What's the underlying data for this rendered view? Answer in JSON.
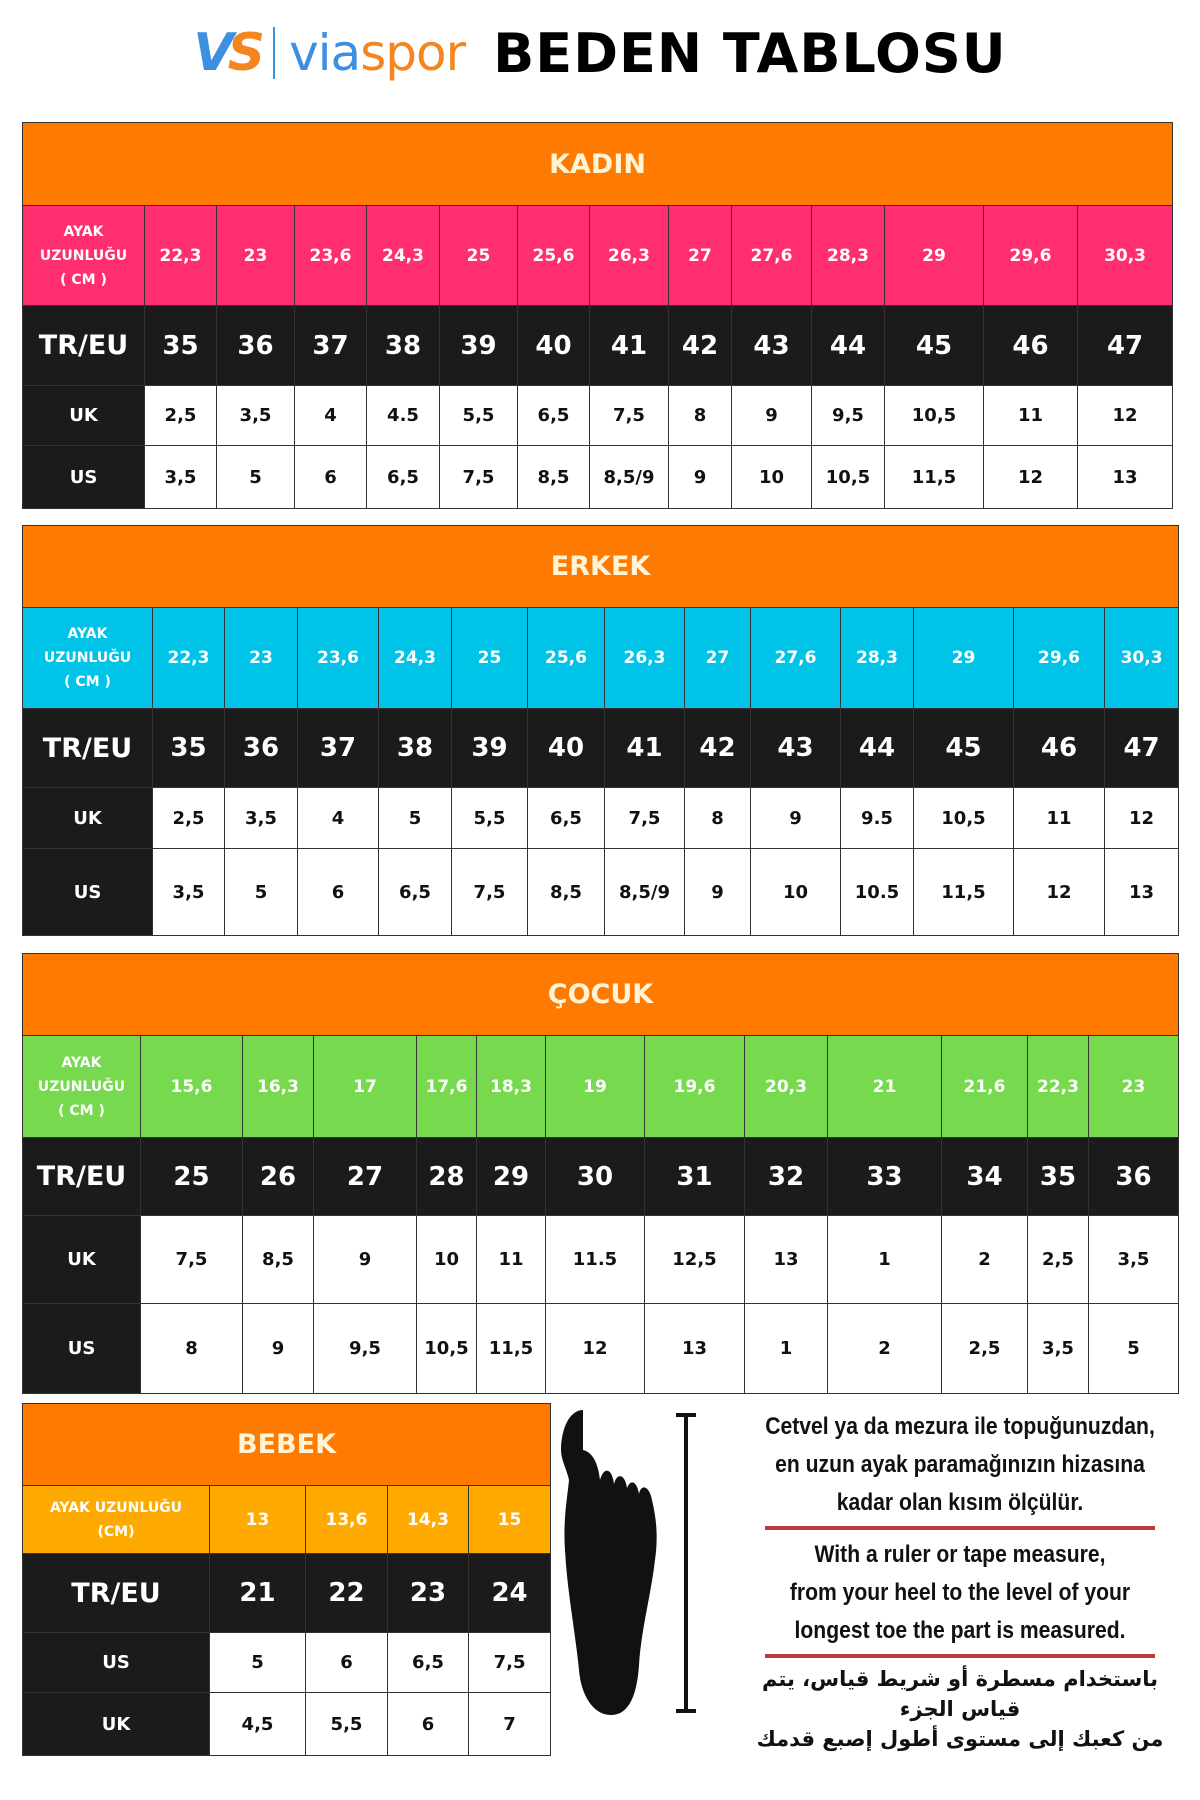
{
  "header": {
    "logo_mark": "VS",
    "logo_word_blue": "via",
    "logo_word_orange": "spor",
    "title": "BEDEN TABLOSU",
    "colors": {
      "logo_blue": "#3d8fe0",
      "logo_orange": "#f5861f"
    }
  },
  "tables": [
    {
      "title": "KADIN",
      "cm_color": "#ff2e6e",
      "rows": [
        {
          "kind": "cm",
          "label": [
            "AYAK",
            "UZUNLUĞU",
            "( CM )"
          ],
          "values": [
            "22,3",
            "23",
            "23,6",
            "24,3",
            "25",
            "25,6",
            "26,3",
            "27",
            "27,6",
            "28,3",
            "29",
            "29,6",
            "30,3"
          ]
        },
        {
          "kind": "tr",
          "label": "TR/EU",
          "values": [
            "35",
            "36",
            "37",
            "38",
            "39",
            "40",
            "41",
            "42",
            "43",
            "44",
            "45",
            "46",
            "47"
          ]
        },
        {
          "kind": "uk",
          "label": "UK",
          "values": [
            "2,5",
            "3,5",
            "4",
            "4.5",
            "5,5",
            "6,5",
            "7,5",
            "8",
            "9",
            "9,5",
            "10,5",
            "11",
            "12"
          ]
        },
        {
          "kind": "us",
          "label": "US",
          "values": [
            "3,5",
            "5",
            "6",
            "6,5",
            "7,5",
            "8,5",
            "8,5/9",
            "9",
            "10",
            "10,5",
            "11,5",
            "12",
            "13"
          ]
        }
      ]
    },
    {
      "title": "ERKEK",
      "cm_color": "#00c3e8",
      "rows": [
        {
          "kind": "cm",
          "label": [
            "AYAK",
            "UZUNLUĞU",
            "( CM )"
          ],
          "values": [
            "22,3",
            "23",
            "23,6",
            "24,3",
            "25",
            "25,6",
            "26,3",
            "27",
            "27,6",
            "28,3",
            "29",
            "29,6",
            "30,3"
          ]
        },
        {
          "kind": "tr",
          "label": "TR/EU",
          "values": [
            "35",
            "36",
            "37",
            "38",
            "39",
            "40",
            "41",
            "42",
            "43",
            "44",
            "45",
            "46",
            "47"
          ]
        },
        {
          "kind": "uk",
          "label": "UK",
          "values": [
            "2,5",
            "3,5",
            "4",
            "5",
            "5,5",
            "6,5",
            "7,5",
            "8",
            "9",
            "9.5",
            "10,5",
            "11",
            "12"
          ]
        },
        {
          "kind": "us",
          "label": "US",
          "values": [
            "3,5",
            "5",
            "6",
            "6,5",
            "7,5",
            "8,5",
            "8,5/9",
            "9",
            "10",
            "10.5",
            "11,5",
            "12",
            "13"
          ]
        }
      ]
    },
    {
      "title": "ÇOCUK",
      "cm_color": "#77d94e",
      "rows": [
        {
          "kind": "cm",
          "label": [
            "AYAK",
            "UZUNLUĞU",
            "( CM )"
          ],
          "values": [
            "15,6",
            "16,3",
            "17",
            "17,6",
            "18,3",
            "19",
            "19,6",
            "20,3",
            "21",
            "21,6",
            "22,3",
            "23"
          ]
        },
        {
          "kind": "tr",
          "label": "TR/EU",
          "values": [
            "25",
            "26",
            "27",
            "28",
            "29",
            "30",
            "31",
            "32",
            "33",
            "34",
            "35",
            "36"
          ]
        },
        {
          "kind": "uk",
          "label": "UK",
          "values": [
            "7,5",
            "8,5",
            "9",
            "10",
            "11",
            "11.5",
            "12,5",
            "13",
            "1",
            "2",
            "2,5",
            "3,5"
          ]
        },
        {
          "kind": "us",
          "label": "US",
          "values": [
            "8",
            "9",
            "9,5",
            "10,5",
            "11,5",
            "12",
            "13",
            "1",
            "2",
            "2,5",
            "3,5",
            "5"
          ]
        }
      ]
    },
    {
      "title": "BEBEK",
      "cm_color": "#ffaa00",
      "rows": [
        {
          "kind": "cm",
          "label": [
            "AYAK UZUNLUĞU",
            "(CM)"
          ],
          "values": [
            "13",
            "13,6",
            "14,3",
            "15"
          ]
        },
        {
          "kind": "tr",
          "label": "TR/EU",
          "values": [
            "21",
            "22",
            "23",
            "24"
          ]
        },
        {
          "kind": "us",
          "label": "US",
          "values": [
            "5",
            "6",
            "6,5",
            "7,5"
          ]
        },
        {
          "kind": "uk",
          "label": "UK",
          "values": [
            "4,5",
            "5,5",
            "6",
            "7"
          ]
        }
      ]
    }
  ],
  "instructions": {
    "tr": [
      "Cetvel ya da mezura ile topuğunuzdan,",
      "en uzun ayak paramağınızın hizasına",
      "kadar olan kısım ölçülür."
    ],
    "en": [
      "With a ruler or tape measure,",
      "from your heel to the level of your",
      "longest toe the part is measured."
    ],
    "ar": [
      "باستخدام مسطرة أو شريط قياس، يتم قياس الجزء",
      "من كعبك إلى مستوى أطول إصبع قدمك"
    ]
  }
}
